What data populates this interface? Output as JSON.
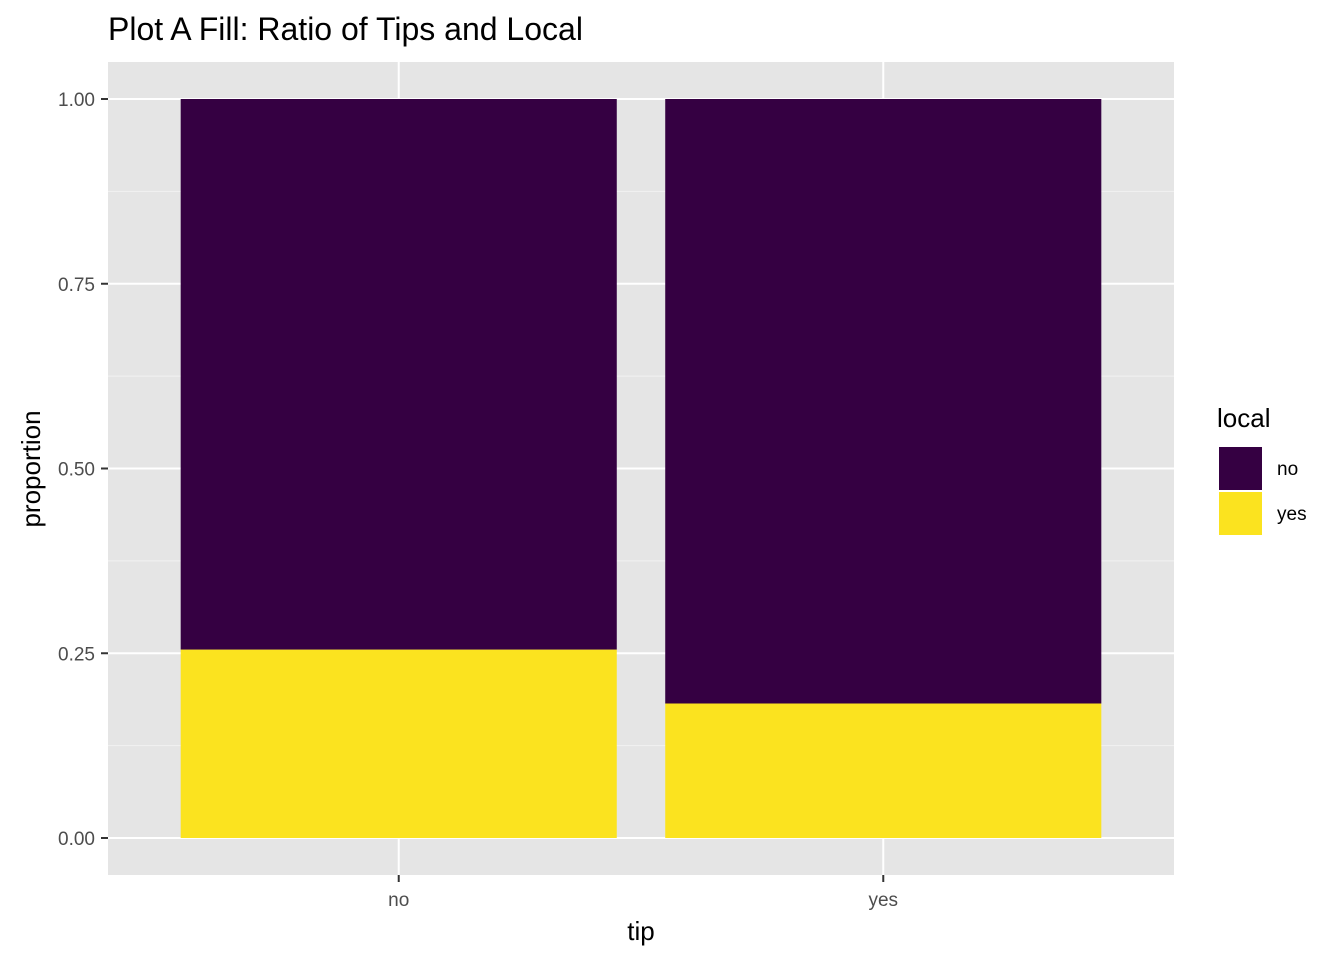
{
  "chart_data": {
    "type": "bar",
    "stacked": "fill",
    "title": "Plot A Fill: Ratio of Tips and Local",
    "xlabel": "tip",
    "ylabel": "proportion",
    "categories": [
      "no",
      "yes"
    ],
    "series": [
      {
        "name": "no",
        "color": "#350042",
        "values": [
          0.745,
          0.818
        ]
      },
      {
        "name": "yes",
        "color": "#FBE31F",
        "values": [
          0.255,
          0.182
        ]
      }
    ],
    "ylim": [
      0,
      1
    ],
    "yticks": [
      0,
      0.25,
      0.5,
      0.75,
      1.0
    ],
    "ytick_labels": [
      "0.00",
      "0.25",
      "0.50",
      "0.75",
      "1.00"
    ],
    "grid": true,
    "panel_background": "#E5E5E5",
    "legend": {
      "title": "local",
      "position": "right",
      "items": [
        "no",
        "yes"
      ]
    }
  }
}
